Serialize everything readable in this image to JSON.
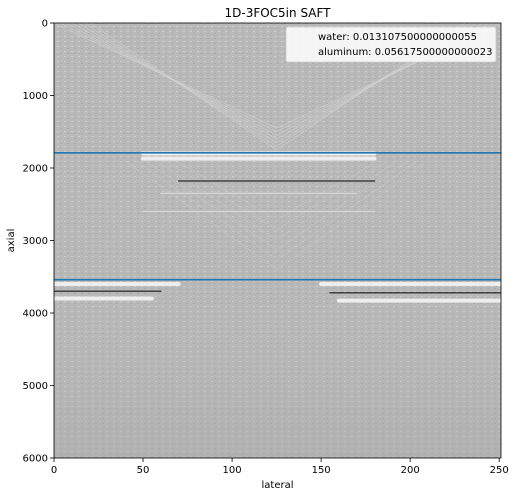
{
  "chart_data": {
    "type": "heatmap",
    "title": "1D-3FOC5in SAFT",
    "xlabel": "lateral",
    "ylabel": "axial",
    "xlim": [
      0,
      251
    ],
    "ylim": [
      6000,
      0
    ],
    "y_inverted": true,
    "colormap": "gray",
    "xticks": [
      0,
      50,
      100,
      150,
      200,
      250
    ],
    "yticks": [
      0,
      1000,
      2000,
      3000,
      4000,
      5000,
      6000
    ],
    "legend_position": "top-right",
    "series": [
      {
        "name": "water: 0.013107500000000055",
        "type": "hline",
        "y": 1790,
        "color": "#1f77b4"
      },
      {
        "name": "aluminum: 0.05617500000000023",
        "type": "hline",
        "y": 3540,
        "color": "#1f77b4"
      }
    ],
    "reflections": [
      {
        "y": 1800,
        "x_range": [
          50,
          180
        ],
        "shade": "bright"
      },
      {
        "y": 1870,
        "x_range": [
          50,
          180
        ],
        "shade": "bright"
      },
      {
        "y": 2180,
        "x_range": [
          70,
          180
        ],
        "shade": "dark"
      },
      {
        "y": 2350,
        "x_range": [
          60,
          170
        ],
        "shade": "faint"
      },
      {
        "y": 2600,
        "x_range": [
          50,
          180
        ],
        "shade": "faint"
      },
      {
        "y": 3600,
        "x_range": [
          0,
          70
        ],
        "shade": "bright"
      },
      {
        "y": 3700,
        "x_range": [
          0,
          60
        ],
        "shade": "dark"
      },
      {
        "y": 3800,
        "x_range": [
          0,
          55
        ],
        "shade": "bright"
      },
      {
        "y": 3600,
        "x_range": [
          150,
          251
        ],
        "shade": "bright"
      },
      {
        "y": 3720,
        "x_range": [
          155,
          251
        ],
        "shade": "dark"
      },
      {
        "y": 3830,
        "x_range": [
          160,
          251
        ],
        "shade": "bright"
      }
    ]
  }
}
